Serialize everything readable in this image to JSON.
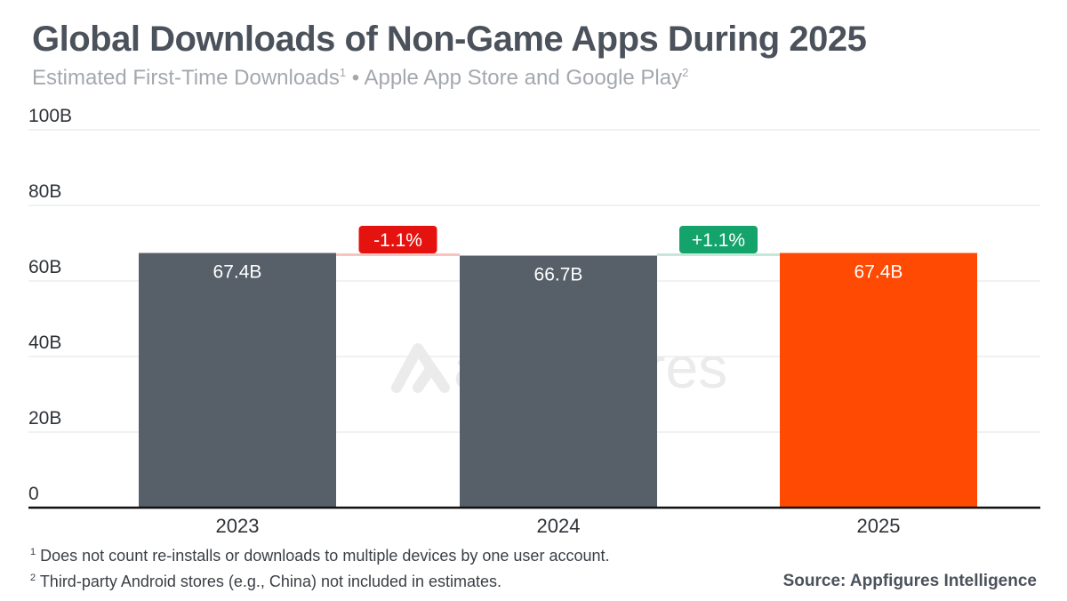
{
  "title": "Global Downloads of Non-Game Apps During 2025",
  "subtitle": {
    "text1": "Estimated First-Time Downloads",
    "sup1": "1",
    "sep": " • Apple App Store and Google Play",
    "sup2": "2"
  },
  "watermark": "appfigures",
  "chart_data": {
    "type": "bar",
    "categories": [
      "2023",
      "2024",
      "2025"
    ],
    "values": [
      67.4,
      66.7,
      67.4
    ],
    "data_labels": [
      "67.4B",
      "66.7B",
      "67.4B"
    ],
    "colors": [
      "#575f69",
      "#575f69",
      "#fe4a03"
    ],
    "ylim": [
      0,
      100
    ],
    "yticks": [
      0,
      20,
      40,
      60,
      80,
      100
    ],
    "ytick_labels": [
      "0",
      "20B",
      "40B",
      "60B",
      "80B",
      "100B"
    ],
    "grid": true,
    "changes": [
      {
        "label": "-1.1%",
        "color": "#e5130f",
        "line_color": "#f9c4c0"
      },
      {
        "label": "+1.1%",
        "color": "#14a36b",
        "line_color": "#c4e8d9"
      }
    ]
  },
  "footnotes": [
    {
      "sup": "1",
      "text": "Does not count re-installs or downloads to multiple devices by one user account."
    },
    {
      "sup": "2",
      "text": "Third-party Android stores (e.g., China) not included in estimates."
    }
  ],
  "source": "Source: Appfigures Intelligence"
}
